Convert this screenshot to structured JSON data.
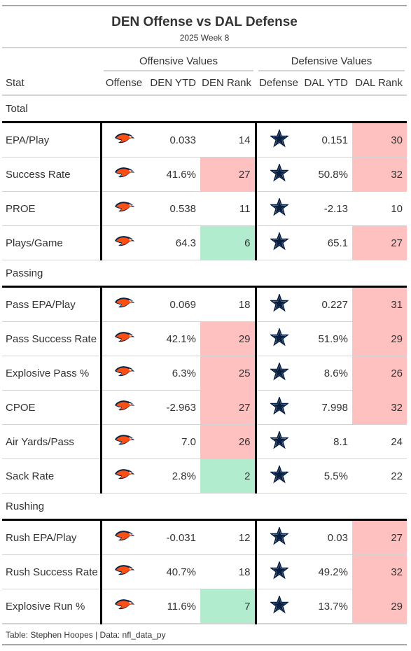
{
  "title": "DEN Offense vs DAL Defense",
  "subtitle": "2025 Week 8",
  "spanners": {
    "offense": "Offensive Values",
    "defense": "Defensive Values"
  },
  "columns": [
    "Stat",
    "Offense",
    "DEN YTD",
    "DEN Rank",
    "Defense",
    "DAL YTD",
    "DAL Rank"
  ],
  "icons": {
    "offense": "broncos-logo-icon",
    "defense": "cowboys-star-icon"
  },
  "colors": {
    "bad": "#ffc0c0",
    "good": "#b2ecce",
    "broncos_orange": "#fb4f14",
    "broncos_navy": "#0a2343",
    "cowboys_navy": "#041e42"
  },
  "groups": [
    {
      "name": "Total",
      "rows": [
        {
          "stat": "EPA/Play",
          "den_ytd": "0.033",
          "den_rank": "14",
          "den_hl": "",
          "dal_ytd": "0.151",
          "dal_rank": "30",
          "dal_hl": "bad"
        },
        {
          "stat": "Success Rate",
          "den_ytd": "41.6%",
          "den_rank": "27",
          "den_hl": "bad",
          "dal_ytd": "50.8%",
          "dal_rank": "32",
          "dal_hl": "bad"
        },
        {
          "stat": "PROE",
          "den_ytd": "0.538",
          "den_rank": "11",
          "den_hl": "",
          "dal_ytd": "-2.13",
          "dal_rank": "10",
          "dal_hl": ""
        },
        {
          "stat": "Plays/Game",
          "den_ytd": "64.3",
          "den_rank": "6",
          "den_hl": "good",
          "dal_ytd": "65.1",
          "dal_rank": "27",
          "dal_hl": "bad"
        }
      ]
    },
    {
      "name": "Passing",
      "rows": [
        {
          "stat": "Pass EPA/Play",
          "den_ytd": "0.069",
          "den_rank": "18",
          "den_hl": "",
          "dal_ytd": "0.227",
          "dal_rank": "31",
          "dal_hl": "bad"
        },
        {
          "stat": "Pass Success Rate",
          "den_ytd": "42.1%",
          "den_rank": "29",
          "den_hl": "bad",
          "dal_ytd": "51.9%",
          "dal_rank": "29",
          "dal_hl": "bad"
        },
        {
          "stat": "Explosive Pass %",
          "den_ytd": "6.3%",
          "den_rank": "25",
          "den_hl": "bad",
          "dal_ytd": "8.6%",
          "dal_rank": "26",
          "dal_hl": "bad"
        },
        {
          "stat": "CPOE",
          "den_ytd": "-2.963",
          "den_rank": "27",
          "den_hl": "bad",
          "dal_ytd": "7.998",
          "dal_rank": "32",
          "dal_hl": "bad"
        },
        {
          "stat": "Air Yards/Pass",
          "den_ytd": "7.0",
          "den_rank": "26",
          "den_hl": "bad",
          "dal_ytd": "8.1",
          "dal_rank": "24",
          "dal_hl": ""
        },
        {
          "stat": "Sack Rate",
          "den_ytd": "2.8%",
          "den_rank": "2",
          "den_hl": "good",
          "dal_ytd": "5.5%",
          "dal_rank": "22",
          "dal_hl": ""
        }
      ]
    },
    {
      "name": "Rushing",
      "rows": [
        {
          "stat": "Rush EPA/Play",
          "den_ytd": "-0.031",
          "den_rank": "12",
          "den_hl": "",
          "dal_ytd": "0.03",
          "dal_rank": "27",
          "dal_hl": "bad"
        },
        {
          "stat": "Rush Success Rate",
          "den_ytd": "40.7%",
          "den_rank": "18",
          "den_hl": "",
          "dal_ytd": "49.2%",
          "dal_rank": "32",
          "dal_hl": "bad"
        },
        {
          "stat": "Explosive Run %",
          "den_ytd": "11.6%",
          "den_rank": "7",
          "den_hl": "good",
          "dal_ytd": "13.7%",
          "dal_rank": "29",
          "dal_hl": "bad"
        }
      ]
    }
  ],
  "footer": "Table: Stephen Hoopes | Data: nfl_data_py"
}
